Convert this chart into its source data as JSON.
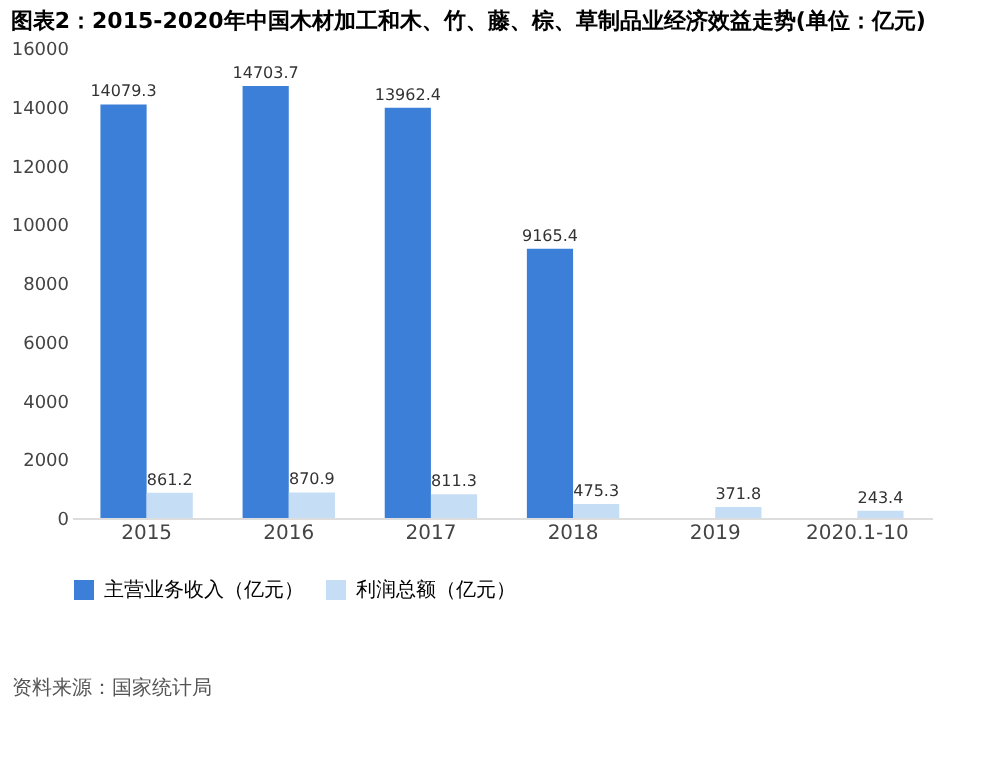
{
  "chart_data": {
    "type": "bar",
    "title": "图表2：2015-2020年中国木材加工和木、竹、藤、棕、草制品业经济效益走势(单位：亿元)",
    "categories": [
      "2015",
      "2016",
      "2017",
      "2018",
      "2019",
      "2020.1-10"
    ],
    "series": [
      {
        "name": "主营业务收入（亿元）",
        "color": "#3b7fd9",
        "values": [
          14079.3,
          14703.7,
          13962.4,
          9165.4,
          null,
          null
        ],
        "value_labels": [
          "14079.3",
          "14703.7",
          "13962.4",
          "9165.4",
          null,
          null
        ]
      },
      {
        "name": "利润总额（亿元）",
        "color": "#c6ddf6",
        "values": [
          861.2,
          870.9,
          811.3,
          475.3,
          371.8,
          243.4
        ],
        "value_labels": [
          "861.2",
          "870.9",
          "811.3",
          "475.3",
          "371.8",
          "243.4"
        ]
      }
    ],
    "ylim": [
      0,
      16000
    ],
    "yticks": [
      0,
      2000,
      4000,
      6000,
      8000,
      10000,
      12000,
      14000,
      16000
    ],
    "grid": false,
    "legend": "bottom",
    "annotations": [
      "资料来源：国家统计局"
    ]
  }
}
